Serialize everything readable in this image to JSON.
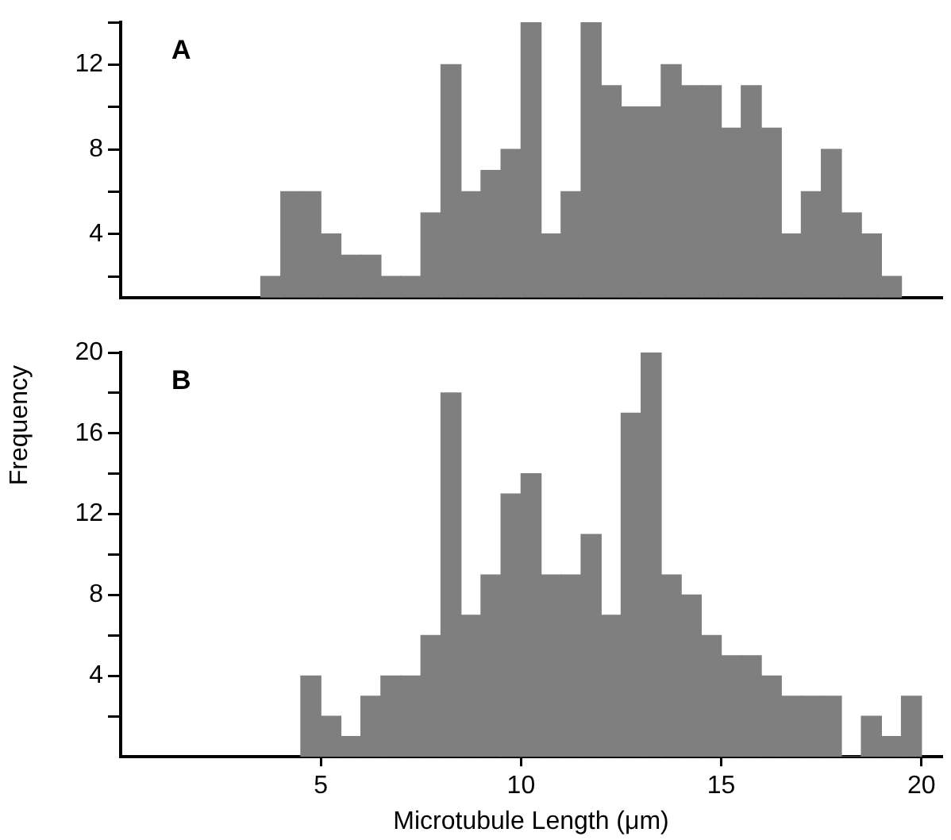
{
  "chart_data": [
    {
      "type": "histogram",
      "title": "A",
      "bins": [
        3.5,
        4,
        4.5,
        5,
        5.5,
        6,
        6.5,
        7,
        7.5,
        8,
        8.5,
        9,
        9.5,
        10,
        10.5,
        11,
        11.5,
        12,
        12.5,
        13,
        13.5,
        14,
        14.5,
        15,
        15.5,
        16,
        16.5,
        17,
        17.5,
        18,
        18.5,
        19,
        19.5
      ],
      "values": [
        2,
        6,
        6,
        4,
        3,
        3,
        2,
        2,
        5,
        12,
        6,
        7,
        8,
        14,
        4,
        6,
        14,
        11,
        10,
        10,
        12,
        11,
        11,
        9,
        11,
        9,
        4,
        6,
        8,
        5,
        4,
        2
      ],
      "color": "#7f7f7f",
      "xlim": [
        0,
        20.5
      ],
      "ylim": [
        1,
        14
      ],
      "xticks": [
        5,
        10,
        15,
        20
      ],
      "yticks": [
        {
          "value": 2,
          "label": null
        },
        4,
        {
          "value": 6,
          "label": null
        },
        8,
        {
          "value": 10,
          "label": null
        },
        12,
        {
          "value": 14,
          "label": null
        }
      ],
      "tick_labels": "y",
      "grid": false,
      "legend": false
    },
    {
      "type": "histogram",
      "title": "B",
      "xlabel": "Microtubule Length (μm)",
      "ylabel": "Frequency",
      "bins": [
        4.5,
        5,
        5.5,
        6,
        6.5,
        7,
        7.5,
        8,
        8.5,
        9,
        9.5,
        10,
        10.5,
        11,
        11.5,
        12,
        12.5,
        13,
        13.5,
        14,
        14.5,
        15,
        15.5,
        16,
        16.5,
        17,
        17.5,
        18,
        18.5,
        19,
        19.5,
        20
      ],
      "values": [
        4,
        2,
        1,
        3,
        4,
        4,
        6,
        18,
        7,
        9,
        13,
        14,
        9,
        9,
        11,
        7,
        17,
        20,
        9,
        8,
        6,
        5,
        5,
        4,
        3,
        3,
        3,
        0,
        2,
        1,
        3
      ],
      "color": "#7f7f7f",
      "xlim": [
        0,
        20.5
      ],
      "ylim": [
        0,
        20
      ],
      "xticks": [
        5,
        10,
        15,
        20
      ],
      "yticks": [
        {
          "value": 2,
          "label": null
        },
        4,
        {
          "value": 6,
          "label": null
        },
        8,
        {
          "value": 10,
          "label": null
        },
        12,
        {
          "value": 14,
          "label": null
        },
        16,
        {
          "value": 18,
          "label": null
        },
        20
      ],
      "grid": false,
      "legend": false
    }
  ]
}
